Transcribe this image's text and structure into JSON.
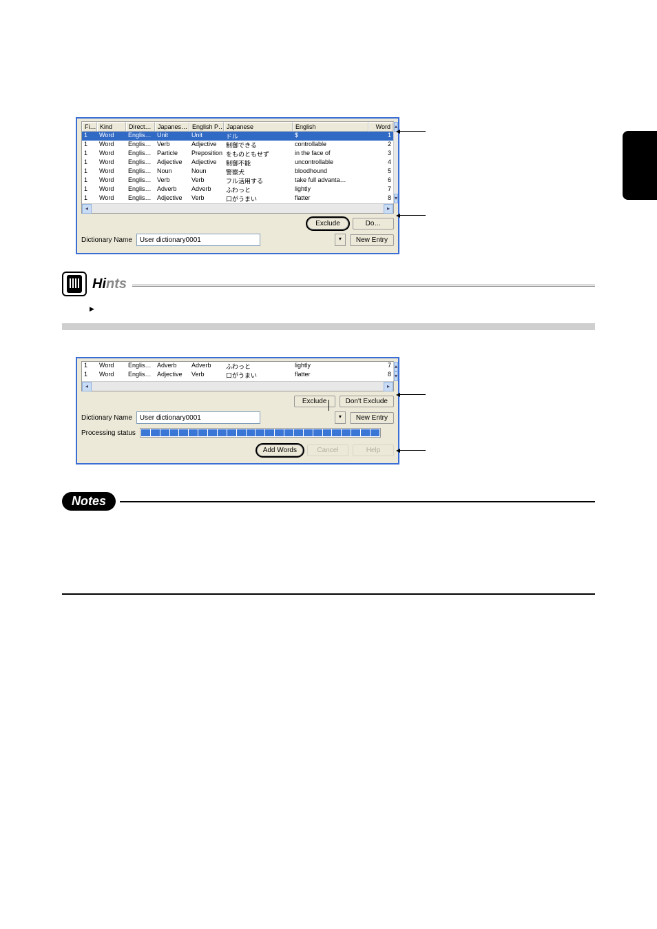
{
  "table": {
    "headers": [
      "Fi…",
      "Kind",
      "Direct…",
      "Japanes…",
      "English P…",
      "Japanese",
      "English",
      "Word"
    ],
    "rows": [
      {
        "fi": "1",
        "kind": "Word",
        "dir": "Englis…",
        "jp1": "Unit",
        "ep": "Unit",
        "jp2": "ドル",
        "en": "$",
        "word": "1",
        "selected": true
      },
      {
        "fi": "1",
        "kind": "Word",
        "dir": "Englis…",
        "jp1": "Verb",
        "ep": "Adjective",
        "jp2": "制御できる",
        "en": "controllable",
        "word": "2"
      },
      {
        "fi": "1",
        "kind": "Word",
        "dir": "Englis…",
        "jp1": "Particle",
        "ep": "Preposition",
        "jp2": "をものともせず",
        "en": "in the face of",
        "word": "3"
      },
      {
        "fi": "1",
        "kind": "Word",
        "dir": "Englis…",
        "jp1": "Adjective",
        "ep": "Adjective",
        "jp2": "制御不能",
        "en": "uncontrollable",
        "word": "4"
      },
      {
        "fi": "1",
        "kind": "Word",
        "dir": "Englis…",
        "jp1": "Noun",
        "ep": "Noun",
        "jp2": "警察犬",
        "en": "bloodhound",
        "word": "5"
      },
      {
        "fi": "1",
        "kind": "Word",
        "dir": "Englis…",
        "jp1": "Verb",
        "ep": "Verb",
        "jp2": "フル活用する",
        "en": "take full advanta…",
        "word": "6"
      },
      {
        "fi": "1",
        "kind": "Word",
        "dir": "Englis…",
        "jp1": "Adverb",
        "ep": "Adverb",
        "jp2": "ふわっと",
        "en": "lightly",
        "word": "7"
      },
      {
        "fi": "1",
        "kind": "Word",
        "dir": "Englis…",
        "jp1": "Adjective",
        "ep": "Verb",
        "jp2": "口がうまい",
        "en": "flatter",
        "word": "8"
      }
    ]
  },
  "table2_rows": [
    {
      "fi": "1",
      "kind": "Word",
      "dir": "Englis…",
      "jp1": "Adverb",
      "ep": "Adverb",
      "jp2": "ふわっと",
      "en": "lightly",
      "word": "7"
    },
    {
      "fi": "1",
      "kind": "Word",
      "dir": "Englis…",
      "jp1": "Adjective",
      "ep": "Verb",
      "jp2": "口がうまい",
      "en": "flatter",
      "word": "8"
    }
  ],
  "dict_label": "Dictionary Name",
  "dict_value": "User dictionary0001",
  "processing_label": "Processing status",
  "btn_exclude": "Exclude",
  "btn_dont_exclude": "Don't Exclude",
  "btn_dont_exclude_cut": "Do…",
  "btn_new_entry": "New Entry",
  "btn_add_words": "Add Words",
  "btn_cancel": "Cancel",
  "btn_help": "Help",
  "hints_title_dark": "Hi",
  "hints_title_grey": "nts",
  "notes_title": "Notes"
}
